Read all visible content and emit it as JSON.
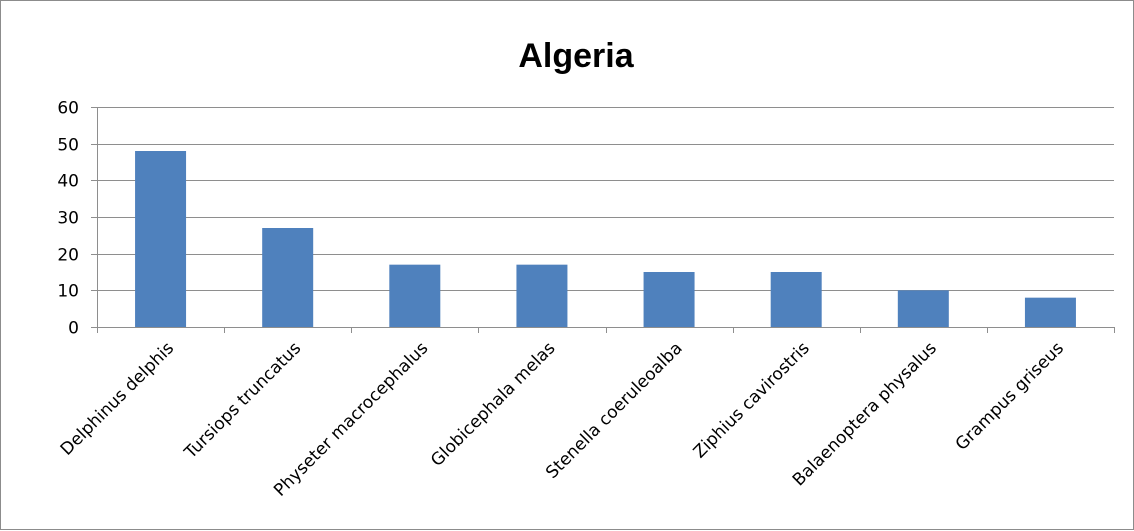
{
  "chart_data": {
    "type": "bar",
    "title": "Algeria",
    "categories": [
      "Delphinus delphis",
      "Tursiops truncatus",
      "Physeter macrocephalus",
      "Globicephala melas",
      "Stenella coeruleoalba",
      "Ziphius cavirostris",
      "Balaenoptera physalus",
      "Grampus griseus"
    ],
    "values": [
      48,
      27,
      17,
      17,
      15,
      15,
      10,
      8
    ],
    "xlabel": "",
    "ylabel": "",
    "ylim": [
      0,
      60
    ],
    "yticks": [
      0,
      10,
      20,
      30,
      40,
      50,
      60
    ],
    "grid": true,
    "legend": "none",
    "bar_color": "#4f81bd"
  }
}
